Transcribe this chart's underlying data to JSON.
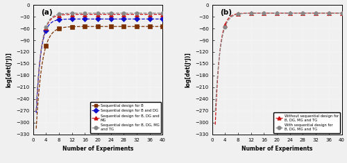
{
  "xlim": [
    0,
    40
  ],
  "ylim": [
    -330,
    0
  ],
  "yticks": [
    0,
    -30,
    -60,
    -90,
    -120,
    -150,
    -180,
    -210,
    -240,
    -270,
    -300,
    -330
  ],
  "xticks": [
    0,
    4,
    8,
    12,
    16,
    20,
    24,
    28,
    32,
    36,
    40
  ],
  "xlabel": "Number of Experiments",
  "ylabel": "log[det(JᵀJ)]",
  "panel_a": {
    "label": "(a)",
    "series": [
      {
        "label": "Sequential design for B",
        "color": "#7B3000",
        "marker": "s",
        "plateau": -55,
        "x0": 1,
        "y0": -315,
        "x_knee": 5,
        "rate": 0.55
      },
      {
        "label": "Sequential design for B and DG",
        "color": "#1111CC",
        "marker": "D",
        "plateau": -36,
        "x0": 1,
        "y0": -275,
        "x_knee": 4,
        "rate": 0.7
      },
      {
        "label": "Sequential design for B, DG and\nMG",
        "color": "#CC1111",
        "marker": "^",
        "plateau": -24,
        "x0": 1,
        "y0": -270,
        "x_knee": 8,
        "rate": 0.65
      },
      {
        "label": "Sequential design for B, DG, MG\nand TG",
        "color": "#888888",
        "marker": "o",
        "plateau": -21,
        "x0": 1,
        "y0": -270,
        "x_knee": 8,
        "rate": 0.65
      }
    ]
  },
  "panel_b": {
    "label": "(b)",
    "series": [
      {
        "label": "Without sequential design for\nB, DG, MG and TG",
        "color": "#CC1111",
        "marker": "^",
        "plateau": -21,
        "x0": 1,
        "y0": -305,
        "x_knee": 4,
        "rate": 0.75
      },
      {
        "label": "With sequential design for\nB, DG, MG and TG",
        "color": "#888888",
        "marker": "o",
        "plateau": -21,
        "x0": 1,
        "y0": -270,
        "x_knee": 8,
        "rate": 0.65
      }
    ]
  }
}
